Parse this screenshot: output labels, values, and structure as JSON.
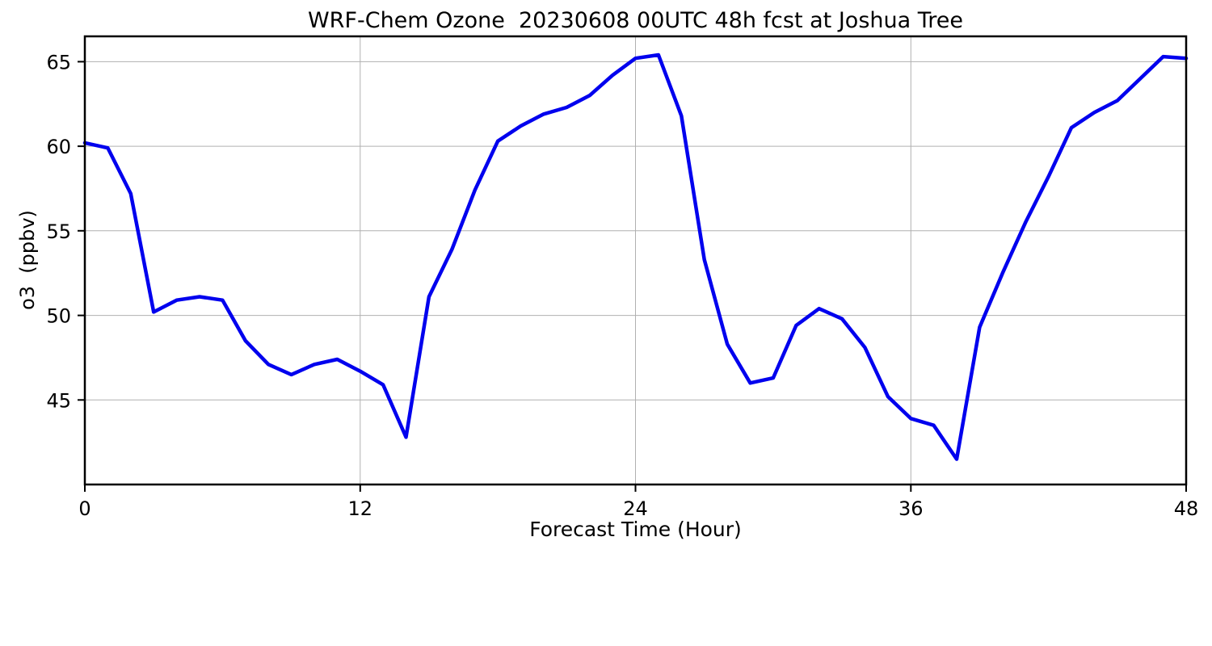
{
  "figure": {
    "background": "#ffffff"
  },
  "chart_data": {
    "type": "line",
    "title": "WRF-Chem Ozone  20230608 00UTC 48h fcst at Joshua Tree",
    "xlabel": "Forecast Time (Hour)",
    "ylabel": "o3  (ppbv)",
    "xlim": [
      0,
      48
    ],
    "ylim": [
      40.0,
      66.5
    ],
    "xticks": [
      0,
      12,
      24,
      36,
      48
    ],
    "yticks": [
      45,
      50,
      55,
      60,
      65
    ],
    "grid": true,
    "legend": "none",
    "line_color": "#0000ee",
    "line_width": 4.5,
    "x": [
      0,
      1,
      2,
      3,
      4,
      5,
      6,
      7,
      8,
      9,
      10,
      11,
      12,
      13,
      14,
      15,
      16,
      17,
      18,
      19,
      20,
      21,
      22,
      23,
      24,
      25,
      26,
      27,
      28,
      29,
      30,
      31,
      32,
      33,
      34,
      35,
      36,
      37,
      38,
      39,
      40,
      41,
      42,
      43,
      44,
      45,
      46,
      47,
      48
    ],
    "y": [
      60.2,
      59.9,
      57.2,
      50.2,
      50.9,
      51.1,
      50.9,
      48.5,
      47.1,
      46.5,
      47.1,
      47.4,
      46.7,
      45.9,
      42.8,
      51.1,
      53.9,
      57.4,
      60.3,
      61.2,
      61.9,
      62.3,
      63.0,
      64.2,
      65.2,
      65.4,
      61.8,
      53.3,
      48.3,
      46.0,
      46.3,
      49.4,
      50.4,
      49.8,
      48.1,
      45.2,
      43.9,
      43.5,
      41.5,
      49.3,
      52.5,
      55.5,
      58.2,
      61.1,
      62.0,
      62.7,
      64.0,
      65.3,
      65.2
    ]
  }
}
